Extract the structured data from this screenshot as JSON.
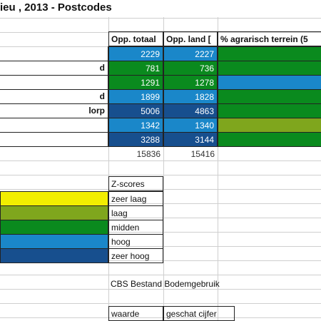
{
  "title": "ieu , 2013 - Postcodes",
  "headers": {
    "opp_totaal": "Opp. totaal",
    "opp_land": "Opp. land [",
    "agrarisch": "% agrarisch terrein (5"
  },
  "rows": [
    {
      "name": "",
      "opp_totaal": "2229",
      "opp_land": "2227",
      "fill_totaal": "#1a87c9",
      "fill_land": "#1a87c9",
      "fill_agr": "#0a8a1e"
    },
    {
      "name": "d",
      "opp_totaal": "781",
      "opp_land": "736",
      "fill_totaal": "#0a8a1e",
      "fill_land": "#0a8a1e",
      "fill_agr": "#0a8a1e"
    },
    {
      "name": "",
      "opp_totaal": "1291",
      "opp_land": "1278",
      "fill_totaal": "#0a8a1e",
      "fill_land": "#0a8a1e",
      "fill_agr": "#1a87c9"
    },
    {
      "name": "d",
      "opp_totaal": "1899",
      "opp_land": "1828",
      "fill_totaal": "#1a87c9",
      "fill_land": "#1a87c9",
      "fill_agr": "#0a8a1e"
    },
    {
      "name": "lorp",
      "opp_totaal": "5006",
      "opp_land": "4863",
      "fill_totaal": "#174f8e",
      "fill_land": "#174f8e",
      "fill_agr": "#0a8a1e"
    },
    {
      "name": "",
      "opp_totaal": "1342",
      "opp_land": "1340",
      "fill_totaal": "#1a87c9",
      "fill_land": "#1a87c9",
      "fill_agr": "#7fa61d"
    },
    {
      "name": "",
      "opp_totaal": "3288",
      "opp_land": "3144",
      "fill_totaal": "#174f8e",
      "fill_land": "#174f8e",
      "fill_agr": "#0a8a1e"
    }
  ],
  "totals": {
    "opp_totaal": "15836",
    "opp_land": "15416"
  },
  "legend": {
    "header": "Z-scores",
    "items": [
      {
        "label": "zeer laag",
        "color": "#f2ee00"
      },
      {
        "label": "laag",
        "color": "#7fa61d"
      },
      {
        "label": "midden",
        "color": "#0a8a1e"
      },
      {
        "label": "hoog",
        "color": "#1a87c9"
      },
      {
        "label": "zeer hoog",
        "color": "#174f8e"
      }
    ]
  },
  "source": "CBS Bestand Bodemgebruik",
  "footer": {
    "waarde": "waarde",
    "geschat": "geschat cijfer"
  }
}
